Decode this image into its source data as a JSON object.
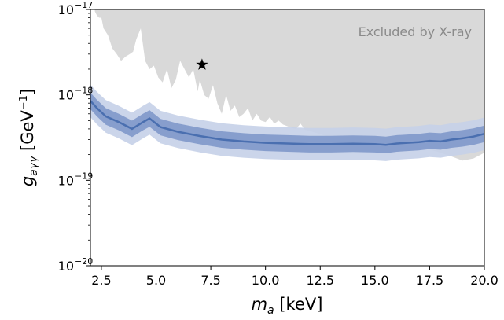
{
  "chart_data": {
    "type": "area",
    "xlabel": "m_a [keV]",
    "ylabel": "g_aγγ [GeV⁻¹]",
    "xlim": [
      2,
      20
    ],
    "ylim": [
      1e-20,
      1e-17
    ],
    "y_scale": "log",
    "grid": false,
    "x_ticks": [
      2.5,
      5.0,
      7.5,
      10.0,
      12.5,
      15.0,
      17.5,
      20.0
    ],
    "x_tick_labels": [
      "2.5",
      "5.0",
      "7.5",
      "10.0",
      "12.5",
      "15.0",
      "17.5",
      "20.0"
    ],
    "y_ticks": [
      1e-20,
      1e-19,
      1e-18,
      1e-17
    ],
    "y_tick_labels": [
      {
        "base": "10",
        "exp": "−20"
      },
      {
        "base": "10",
        "exp": "−19"
      },
      {
        "base": "10",
        "exp": "−18"
      },
      {
        "base": "10",
        "exp": "−17"
      }
    ],
    "annotation": "Excluded by X-ray",
    "colors": {
      "excluded": "#d9d9d9",
      "median": "#4a6fb0",
      "band_1sigma": "#7f98ca",
      "band_2sigma": "#c5d0e8",
      "star": "#000000"
    },
    "series": [
      {
        "role": "excluded-region-lower-boundary",
        "x": [
          2.2,
          2.3,
          2.4,
          2.5,
          2.6,
          2.8,
          3.0,
          3.2,
          3.4,
          3.6,
          3.8,
          3.95,
          4.1,
          4.3,
          4.5,
          4.7,
          4.9,
          5.1,
          5.3,
          5.5,
          5.7,
          5.9,
          6.1,
          6.3,
          6.5,
          6.7,
          6.9,
          7.0,
          7.2,
          7.4,
          7.6,
          7.8,
          8.0,
          8.2,
          8.4,
          8.6,
          8.8,
          9.0,
          9.2,
          9.4,
          9.6,
          9.8,
          10.0,
          10.2,
          10.4,
          10.6,
          10.8,
          11.0,
          11.2,
          11.4,
          11.6,
          11.8,
          12.0,
          12.3,
          12.6,
          13.0,
          13.5,
          14.0,
          15.0,
          16.0,
          17.0,
          17.5,
          18.0,
          18.5,
          19.0,
          19.5,
          20.0
        ],
        "y": [
          9.5e-18,
          8.5e-18,
          8e-18,
          8e-18,
          6e-18,
          5e-18,
          3.5e-18,
          3e-18,
          2.5e-18,
          2.8e-18,
          3e-18,
          3.2e-18,
          4.5e-18,
          6e-18,
          2.5e-18,
          2e-18,
          2.2e-18,
          1.6e-18,
          1.4e-18,
          2e-18,
          1.2e-18,
          1.5e-18,
          2.5e-18,
          2e-18,
          1.6e-18,
          2e-18,
          1.1e-18,
          1.5e-18,
          1e-18,
          9e-19,
          1.3e-18,
          8e-19,
          6e-19,
          1e-18,
          6.5e-19,
          7.5e-19,
          5.5e-19,
          6e-19,
          7e-19,
          5e-19,
          6e-19,
          5e-19,
          4.8e-19,
          5.5e-19,
          4.6e-19,
          5e-19,
          4.5e-19,
          4.3e-19,
          4.1e-19,
          4e-19,
          4.6e-19,
          3.9e-19,
          3.8e-19,
          3.6e-19,
          3.4e-19,
          3.2e-19,
          3e-19,
          2.8e-19,
          2.7e-19,
          2.6e-19,
          2.5e-19,
          2.3e-19,
          2.1e-19,
          1.9e-19,
          1.7e-19,
          1.8e-19,
          2.1e-19
        ]
      },
      {
        "role": "median-sensitivity",
        "x": [
          2.0,
          2.3,
          2.7,
          3.3,
          3.9,
          4.4,
          4.7,
          5.2,
          6.0,
          7.0,
          8.0,
          9.0,
          10.0,
          11.0,
          12.0,
          13.0,
          14.0,
          15.0,
          15.5,
          16.0,
          17.0,
          17.5,
          18.0,
          18.5,
          19.0,
          19.5,
          20.0
        ],
        "y": [
          8.5e-19,
          7e-19,
          5.6e-19,
          4.8e-19,
          4e-19,
          4.8e-19,
          5.3e-19,
          4.2e-19,
          3.7e-19,
          3.3e-19,
          3e-19,
          2.85e-19,
          2.75e-19,
          2.7e-19,
          2.65e-19,
          2.65e-19,
          2.68e-19,
          2.65e-19,
          2.6e-19,
          2.7e-19,
          2.8e-19,
          2.9e-19,
          2.85e-19,
          3e-19,
          3.1e-19,
          3.25e-19,
          3.5e-19
        ]
      }
    ],
    "bands": {
      "sigma1_factor": 1.25,
      "sigma2_factor": 1.55
    },
    "marker": {
      "shape": "star",
      "x": 7.1,
      "y": 2.25e-18
    }
  }
}
